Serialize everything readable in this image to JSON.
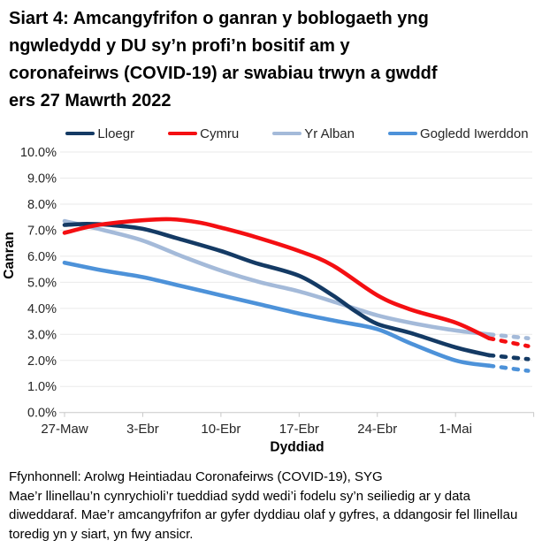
{
  "title": {
    "lines": [
      "Siart 4: Amcangyfrifon o ganran y boblogaeth yng",
      "ngwledydd y DU sy’n profi’n bositif am y",
      "coronafeirws (COVID-19) ar swabiau trwyn a gwddf",
      "ers 27 Mawrth 2022"
    ]
  },
  "legend": {
    "items": [
      {
        "label": "Lloegr",
        "color": "#143A64"
      },
      {
        "label": "Cymru",
        "color": "#F40F12"
      },
      {
        "label": "Yr Alban",
        "color": "#A4BAD9"
      },
      {
        "label": "Gogledd Iwerddon",
        "color": "#4D92D9"
      }
    ]
  },
  "chart_data": {
    "type": "line",
    "xlabel": "Dyddiad",
    "ylabel": "Canran",
    "x_unit": "days since 27 March 2022",
    "ylim": [
      0,
      10
    ],
    "xlim": [
      0,
      41.9
    ],
    "grid": "horizontal",
    "legend_position": "top",
    "dashed_from_day": 38,
    "y_ticks": [
      "0.0%",
      "1.0%",
      "2.0%",
      "3.0%",
      "4.0%",
      "5.0%",
      "6.0%",
      "7.0%",
      "8.0%",
      "9.0%",
      "10.0%"
    ],
    "x_ticks": [
      {
        "day": 0,
        "label": "27-Maw"
      },
      {
        "day": 7,
        "label": "3-Ebr"
      },
      {
        "day": 14,
        "label": "10-Ebr"
      },
      {
        "day": 21,
        "label": "17-Ebr"
      },
      {
        "day": 28,
        "label": "24-Ebr"
      },
      {
        "day": 35,
        "label": "1-Mai"
      },
      {
        "day": 42,
        "label": ""
      }
    ],
    "series": [
      {
        "name": "Gogledd Iwerddon",
        "color": "#4D92D9",
        "points": [
          [
            0,
            5.75
          ],
          [
            3.5,
            5.45
          ],
          [
            7,
            5.2
          ],
          [
            10.5,
            4.85
          ],
          [
            14,
            4.5
          ],
          [
            17.5,
            4.15
          ],
          [
            21,
            3.8
          ],
          [
            24.5,
            3.5
          ],
          [
            28,
            3.2
          ],
          [
            31,
            2.65
          ],
          [
            35,
            2.0
          ],
          [
            38,
            1.8
          ],
          [
            41.5,
            1.6
          ]
        ]
      },
      {
        "name": "Yr Alban",
        "color": "#A4BAD9",
        "points": [
          [
            0,
            7.35
          ],
          [
            3.5,
            7.0
          ],
          [
            7,
            6.6
          ],
          [
            10.5,
            6.0
          ],
          [
            14,
            5.45
          ],
          [
            17.5,
            5.0
          ],
          [
            21,
            4.65
          ],
          [
            24.5,
            4.2
          ],
          [
            28,
            3.73
          ],
          [
            31.5,
            3.4
          ],
          [
            35,
            3.15
          ],
          [
            38,
            3.0
          ],
          [
            41.5,
            2.85
          ]
        ]
      },
      {
        "name": "Lloegr",
        "color": "#143A64",
        "points": [
          [
            0,
            7.2
          ],
          [
            2,
            7.24
          ],
          [
            4,
            7.2
          ],
          [
            7,
            7.05
          ],
          [
            10,
            6.7
          ],
          [
            14,
            6.2
          ],
          [
            17,
            5.75
          ],
          [
            21,
            5.25
          ],
          [
            24,
            4.5
          ],
          [
            26,
            3.9
          ],
          [
            28,
            3.4
          ],
          [
            31,
            3.05
          ],
          [
            35,
            2.5
          ],
          [
            38,
            2.2
          ],
          [
            41.5,
            2.05
          ]
        ]
      },
      {
        "name": "Cymru",
        "color": "#F40F12",
        "points": [
          [
            0,
            6.9
          ],
          [
            3,
            7.2
          ],
          [
            7,
            7.38
          ],
          [
            9.5,
            7.42
          ],
          [
            12,
            7.3
          ],
          [
            14,
            7.1
          ],
          [
            17,
            6.75
          ],
          [
            21,
            6.2
          ],
          [
            24,
            5.65
          ],
          [
            28,
            4.5
          ],
          [
            31,
            3.95
          ],
          [
            35,
            3.45
          ],
          [
            38,
            2.85
          ],
          [
            41.5,
            2.55
          ]
        ]
      }
    ]
  },
  "footer": {
    "source": "Ffynhonnell: Arolwg Heintiadau Coronafeirws (COVID-19), SYG",
    "note": "Mae’r llinellau’n cynrychioli’r tueddiad sydd wedi’i fodelu sy’n seiliedig ar y data diweddaraf. Mae’r amcangyfrifon ar gyfer dyddiau olaf y gyfres, a ddangosir fel llinellau toredig yn y siart, yn fwy ansicr."
  }
}
